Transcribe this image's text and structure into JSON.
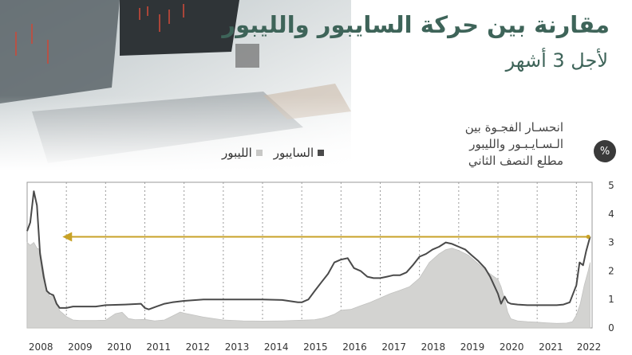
{
  "header": {
    "title": "مقارنة بين حركة السايبور والليبور",
    "subtitle": "لأجل 3 أشهر",
    "unit_badge": "%"
  },
  "annotation": {
    "lines": [
      "انحسـار الفجـوة بين",
      "الـسـايـبـور والليبور",
      "مطلع النصف الثاني"
    ]
  },
  "colors": {
    "saibor_line": "#4a4a4a",
    "libor_area": "#d3d3d1",
    "arrow": "#c8a227",
    "title": "#3e6459"
  },
  "chart_data": {
    "type": "area",
    "title": "مقارنة بين حركة السايبور والليبور",
    "xlabel": "",
    "ylabel": "%",
    "xlim": [
      2008.0,
      2022.4
    ],
    "ylim": [
      0,
      5
    ],
    "x_ticks": [
      "2008",
      "2009",
      "2010",
      "2011",
      "2012",
      "2013",
      "2014",
      "2015",
      "2016",
      "2017",
      "2018",
      "2019",
      "2020",
      "2021",
      "2022"
    ],
    "y_ticks": [
      "0",
      "1",
      "2",
      "3",
      "4",
      "5"
    ],
    "grid": true,
    "legend": [
      "السايبور",
      "الليبور"
    ],
    "legend_position": "top-left",
    "series": [
      {
        "name": "السايبور",
        "style": "line",
        "x": [
          2008.0,
          2008.08,
          2008.17,
          2008.25,
          2008.33,
          2008.42,
          2008.5,
          2008.58,
          2008.67,
          2008.75,
          2008.83,
          2008.92,
          2009.0,
          2009.17,
          2009.5,
          2009.75,
          2010.0,
          2010.5,
          2010.9,
          2011.0,
          2011.1,
          2011.3,
          2011.5,
          2011.7,
          2012.0,
          2012.5,
          2013.0,
          2013.5,
          2014.0,
          2014.5,
          2014.9,
          2015.0,
          2015.17,
          2015.33,
          2015.5,
          2015.67,
          2015.83,
          2016.0,
          2016.17,
          2016.33,
          2016.5,
          2016.67,
          2016.83,
          2017.0,
          2017.17,
          2017.33,
          2017.5,
          2017.67,
          2017.83,
          2018.0,
          2018.17,
          2018.33,
          2018.5,
          2018.67,
          2018.83,
          2019.0,
          2019.17,
          2019.33,
          2019.5,
          2019.67,
          2019.8,
          2019.9,
          2020.0,
          2020.08,
          2020.17,
          2020.25,
          2020.33,
          2020.5,
          2020.75,
          2021.0,
          2021.25,
          2021.5,
          2021.67,
          2021.83,
          2022.0,
          2022.08,
          2022.17,
          2022.25,
          2022.35
        ],
        "values": [
          3.4,
          3.7,
          4.8,
          4.3,
          2.6,
          1.8,
          1.3,
          1.2,
          1.15,
          0.85,
          0.7,
          0.7,
          0.7,
          0.75,
          0.75,
          0.75,
          0.8,
          0.82,
          0.85,
          0.7,
          0.65,
          0.75,
          0.85,
          0.9,
          0.95,
          1.0,
          1.0,
          1.0,
          1.0,
          0.98,
          0.9,
          0.9,
          1.0,
          1.3,
          1.6,
          1.9,
          2.3,
          2.4,
          2.45,
          2.1,
          2.0,
          1.8,
          1.75,
          1.75,
          1.8,
          1.85,
          1.85,
          1.95,
          2.2,
          2.5,
          2.6,
          2.75,
          2.85,
          3.0,
          2.95,
          2.85,
          2.75,
          2.55,
          2.35,
          2.1,
          1.8,
          1.5,
          1.2,
          0.85,
          1.1,
          0.9,
          0.85,
          0.82,
          0.8,
          0.8,
          0.8,
          0.8,
          0.82,
          0.9,
          1.5,
          2.3,
          2.2,
          2.7,
          3.2
        ]
      },
      {
        "name": "الليبور",
        "style": "area",
        "x": [
          2008.0,
          2008.08,
          2008.17,
          2008.25,
          2008.33,
          2008.42,
          2008.5,
          2008.58,
          2008.67,
          2008.75,
          2008.83,
          2008.92,
          2009.0,
          2009.17,
          2009.33,
          2009.5,
          2009.75,
          2010.0,
          2010.25,
          2010.42,
          2010.58,
          2010.75,
          2011.0,
          2011.25,
          2011.5,
          2011.75,
          2011.9,
          2012.0,
          2012.25,
          2012.5,
          2013.0,
          2013.5,
          2014.0,
          2014.5,
          2015.0,
          2015.33,
          2015.5,
          2015.67,
          2015.83,
          2016.0,
          2016.25,
          2016.5,
          2016.75,
          2017.0,
          2017.25,
          2017.5,
          2017.75,
          2018.0,
          2018.25,
          2018.5,
          2018.67,
          2018.83,
          2019.0,
          2019.25,
          2019.5,
          2019.75,
          2019.9,
          2020.0,
          2020.08,
          2020.17,
          2020.25,
          2020.33,
          2020.5,
          2020.75,
          2021.0,
          2021.25,
          2021.5,
          2021.75,
          2021.9,
          2022.0,
          2022.1,
          2022.2,
          2022.3,
          2022.35
        ],
        "values": [
          3.0,
          2.9,
          3.0,
          2.8,
          2.75,
          2.0,
          1.3,
          1.1,
          1.15,
          0.9,
          0.6,
          0.5,
          0.4,
          0.28,
          0.26,
          0.26,
          0.26,
          0.27,
          0.5,
          0.55,
          0.33,
          0.29,
          0.3,
          0.25,
          0.28,
          0.45,
          0.56,
          0.52,
          0.45,
          0.38,
          0.28,
          0.25,
          0.24,
          0.25,
          0.27,
          0.29,
          0.33,
          0.4,
          0.48,
          0.62,
          0.65,
          0.78,
          0.9,
          1.05,
          1.2,
          1.32,
          1.45,
          1.75,
          2.3,
          2.6,
          2.75,
          2.8,
          2.72,
          2.55,
          2.25,
          1.95,
          1.8,
          1.7,
          1.45,
          1.0,
          0.55,
          0.32,
          0.25,
          0.22,
          0.2,
          0.18,
          0.16,
          0.17,
          0.22,
          0.45,
          0.85,
          1.5,
          2.0,
          2.3
        ]
      }
    ],
    "annotations": [
      {
        "type": "arrow",
        "from": {
          "x": 2022.3,
          "y": 3.2
        },
        "to": {
          "x": 2008.9,
          "y": 3.2
        },
        "text": "انحسـار الفجـوة بين الـسـايـبـور والليبور مطلع النصف الثاني"
      }
    ]
  }
}
